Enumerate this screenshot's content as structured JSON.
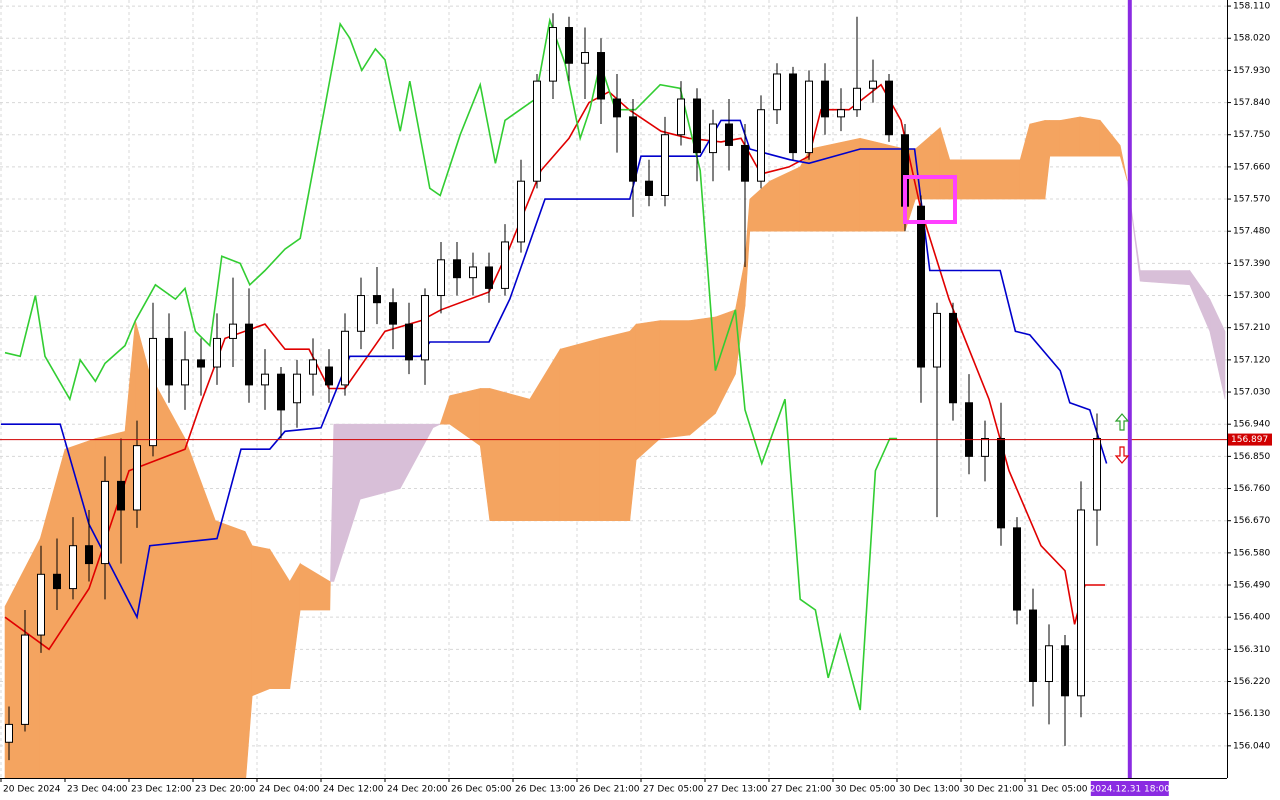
{
  "chart_data": {
    "type": "candlestick",
    "xlim": [
      0,
      153.25
    ],
    "ylim": [
      155.95,
      158.127
    ],
    "grid": true,
    "xticks": [
      {
        "value": 0,
        "label": "20 Dec 2024"
      },
      {
        "value": 8,
        "label": "23 Dec 04:00"
      },
      {
        "value": 16,
        "label": "23 Dec 12:00"
      },
      {
        "value": 24,
        "label": "23 Dec 20:00"
      },
      {
        "value": 32,
        "label": "24 Dec 04:00"
      },
      {
        "value": 40,
        "label": "24 Dec 12:00"
      },
      {
        "value": 48,
        "label": "24 Dec 20:00"
      },
      {
        "value": 56,
        "label": "26 Dec 05:00"
      },
      {
        "value": 64,
        "label": "26 Dec 13:00"
      },
      {
        "value": 72,
        "label": "26 Dec 21:00"
      },
      {
        "value": 80,
        "label": "27 Dec 05:00"
      },
      {
        "value": 88,
        "label": "27 Dec 13:00"
      },
      {
        "value": 96,
        "label": "27 Dec 21:00"
      },
      {
        "value": 104,
        "label": "30 Dec 05:00"
      },
      {
        "value": 112,
        "label": "30 Dec 13:00"
      },
      {
        "value": 120,
        "label": "30 Dec 21:00"
      },
      {
        "value": 128,
        "label": "31 Dec 05:00"
      }
    ],
    "yticks": [
      {
        "value": 158.11,
        "label": "158.110"
      },
      {
        "value": 158.02,
        "label": "158.020"
      },
      {
        "value": 157.93,
        "label": "157.930"
      },
      {
        "value": 157.84,
        "label": "157.840"
      },
      {
        "value": 157.75,
        "label": "157.750"
      },
      {
        "value": 157.66,
        "label": "157.660"
      },
      {
        "value": 157.57,
        "label": "157.570"
      },
      {
        "value": 157.48,
        "label": "157.480"
      },
      {
        "value": 157.39,
        "label": "157.390"
      },
      {
        "value": 157.3,
        "label": "157.300"
      },
      {
        "value": 157.21,
        "label": "157.210"
      },
      {
        "value": 157.12,
        "label": "157.120"
      },
      {
        "value": 157.03,
        "label": "157.030"
      },
      {
        "value": 156.94,
        "label": "156.940"
      },
      {
        "value": 156.85,
        "label": "156.850"
      },
      {
        "value": 156.76,
        "label": "156.760"
      },
      {
        "value": 156.67,
        "label": "156.670"
      },
      {
        "value": 156.58,
        "label": "156.580"
      },
      {
        "value": 156.49,
        "label": "156.490"
      },
      {
        "value": 156.4,
        "label": "156.400"
      },
      {
        "value": 156.31,
        "label": "156.310"
      },
      {
        "value": 156.22,
        "label": "156.220"
      },
      {
        "value": 156.13,
        "label": "156.130"
      },
      {
        "value": 156.04,
        "label": "156.040"
      }
    ],
    "cloud": {
      "up_color": "#f4a460",
      "down_color": "#d8bfd8",
      "x": [
        0.5,
        4.9,
        8,
        11.8,
        15.5,
        16.8,
        18.6,
        23,
        26.8,
        30.5,
        31.4,
        33.6,
        36.1,
        37.4,
        41.1,
        41.6,
        44.9,
        49.9,
        54,
        54.9,
        56.1,
        59.9,
        61.1,
        66.1,
        69.9,
        74.9,
        78.6,
        79.4,
        82.4,
        86.1,
        89.3,
        91.8,
        93,
        93.6,
        96.1,
        99.9,
        101.1,
        107.4,
        113,
        114.3,
        117.4,
        118.6,
        127.4,
        128.6,
        130.5,
        131.1,
        132.4,
        134.9,
        137.4,
        139.9,
        140.8,
        142.4,
        148.6,
        151.1,
        153
      ],
      "span_a": [
        156.43,
        156.62,
        156.87,
        156.9,
        156.92,
        157.23,
        157.08,
        156.9,
        156.67,
        156.64,
        156.6,
        156.59,
        156.5,
        156.55,
        156.5,
        156.5,
        156.73,
        156.76,
        156.93,
        156.94,
        157.02,
        157.04,
        157.04,
        157.01,
        157.15,
        157.18,
        157.2,
        157.22,
        157.23,
        157.23,
        157.24,
        157.26,
        157.4,
        157.57,
        157.62,
        157.66,
        157.71,
        157.74,
        157.71,
        157.71,
        157.77,
        157.68,
        157.68,
        157.78,
        157.79,
        157.79,
        157.79,
        157.8,
        157.79,
        157.72,
        157.62,
        157.34,
        157.33,
        157.2,
        157.01
      ],
      "span_b": [
        155.92,
        155.92,
        155.92,
        155.92,
        155.92,
        155.92,
        155.92,
        155.92,
        155.92,
        155.92,
        156.18,
        156.2,
        156.2,
        156.42,
        156.42,
        156.94,
        156.94,
        156.94,
        156.94,
        156.94,
        156.94,
        156.88,
        156.67,
        156.67,
        156.67,
        156.67,
        156.67,
        156.84,
        156.9,
        156.91,
        156.97,
        157.08,
        157.27,
        157.48,
        157.48,
        157.48,
        157.48,
        157.48,
        157.48,
        157.57,
        157.57,
        157.57,
        157.57,
        157.57,
        157.57,
        157.69,
        157.69,
        157.69,
        157.69,
        157.69,
        157.62,
        157.37,
        157.37,
        157.29,
        157.2
      ]
    },
    "lines": [
      {
        "color": "#e00000",
        "x": [
          0.5,
          6,
          11,
          16,
          23,
          25,
          28,
          33,
          35.5,
          38.5,
          41,
          43,
          48,
          52.5,
          55,
          61,
          63.5,
          67.5,
          71,
          73.5,
          76,
          78.5,
          82.5,
          86,
          90,
          92.5,
          95,
          98.5,
          101,
          102.5,
          106,
          110,
          112.5,
          115,
          118.5,
          121,
          123.5,
          126,
          130,
          133,
          134.2,
          135.5,
          138
        ],
        "values": [
          156.4,
          156.31,
          156.48,
          156.81,
          156.87,
          157.0,
          157.18,
          157.22,
          157.15,
          157.15,
          157.04,
          157.04,
          157.2,
          157.23,
          157.26,
          157.31,
          157.43,
          157.65,
          157.74,
          157.84,
          157.87,
          157.82,
          157.76,
          157.74,
          157.73,
          157.74,
          157.64,
          157.66,
          157.69,
          157.82,
          157.82,
          157.89,
          157.79,
          157.54,
          157.29,
          157.15,
          157.01,
          156.81,
          156.6,
          156.53,
          156.38,
          156.49,
          156.49
        ]
      },
      {
        "color": "#0000cc",
        "x": [
          0,
          7.4,
          11,
          17,
          18.6,
          27,
          30,
          33.6,
          35.5,
          40,
          43.6,
          52.4,
          53.6,
          61,
          63.6,
          68,
          78.6,
          80,
          87.4,
          90,
          92.4,
          93.6,
          98.6,
          101,
          107.4,
          114.2,
          116.1,
          124.9,
          126.8,
          128.6,
          132.4,
          133.6,
          136.1,
          138.2
        ],
        "values": [
          156.94,
          156.94,
          156.66,
          156.4,
          156.6,
          156.62,
          156.87,
          156.87,
          156.92,
          156.93,
          157.13,
          157.13,
          157.17,
          157.17,
          157.29,
          157.57,
          157.57,
          157.69,
          157.69,
          157.79,
          157.79,
          157.71,
          157.68,
          157.67,
          157.71,
          157.71,
          157.37,
          157.37,
          157.2,
          157.19,
          157.09,
          157.0,
          156.98,
          156.83
        ]
      },
      {
        "color": "#32cd32",
        "x": [
          0.5,
          2.4,
          4.3,
          5.5,
          8.6,
          9.9,
          11.8,
          13,
          15.5,
          16.8,
          19.3,
          21.8,
          23,
          24.3,
          26.1,
          27.6,
          29.9,
          31.1,
          33,
          35.5,
          37.4,
          40.5,
          42.4,
          43.6,
          45.1,
          46.8,
          48,
          49.9,
          51.1,
          53.6,
          54.9,
          57.4,
          59.9,
          61.8,
          63,
          64.9,
          66.8,
          68.6,
          70.5,
          72.4,
          73.6,
          74.9,
          76.8,
          79.3,
          82.4,
          84.9,
          87.4,
          89.3,
          91.8,
          93,
          95.1,
          98,
          99.9,
          101.8,
          103.4,
          104.9,
          107.4,
          109.3,
          111.1,
          112
        ],
        "values": [
          157.14,
          157.13,
          157.3,
          157.13,
          157.01,
          157.12,
          157.06,
          157.11,
          157.16,
          157.23,
          157.33,
          157.29,
          157.32,
          157.2,
          157.16,
          157.41,
          157.39,
          157.33,
          157.37,
          157.43,
          157.46,
          157.83,
          158.06,
          158.02,
          157.93,
          157.99,
          157.96,
          157.76,
          157.9,
          157.6,
          157.58,
          157.75,
          157.89,
          157.67,
          157.79,
          157.82,
          157.85,
          158.07,
          157.95,
          157.74,
          157.82,
          157.95,
          157.82,
          157.82,
          157.89,
          157.88,
          157.65,
          157.09,
          157.26,
          156.98,
          156.83,
          157.01,
          156.45,
          156.42,
          156.23,
          156.35,
          156.14,
          156.81,
          156.9,
          156.9
        ]
      }
    ],
    "candles": {
      "up_color": "#ffffff",
      "down_color": "#000000",
      "x": [
        1,
        3,
        5,
        7,
        9,
        11,
        13,
        15,
        17,
        19,
        21,
        23,
        25,
        27,
        29,
        31,
        33,
        35,
        37,
        39,
        41,
        43,
        45,
        47,
        49,
        51,
        53,
        55,
        57,
        59,
        61,
        63,
        65,
        67,
        69,
        71,
        73,
        75,
        77,
        79,
        81,
        83,
        85,
        87,
        89,
        91,
        93,
        95,
        97,
        99,
        101,
        103,
        105,
        107,
        109,
        111,
        113,
        115,
        117,
        119,
        121,
        123,
        125,
        127,
        129,
        131,
        133,
        135,
        137
      ],
      "open": [
        156.05,
        156.1,
        156.35,
        156.52,
        156.48,
        156.6,
        156.55,
        156.78,
        156.7,
        156.88,
        157.18,
        157.05,
        157.12,
        157.1,
        157.18,
        157.22,
        157.05,
        157.08,
        157.0,
        157.08,
        157.1,
        157.05,
        157.2,
        157.3,
        157.28,
        157.22,
        157.12,
        157.3,
        157.4,
        157.35,
        157.38,
        157.32,
        157.45,
        157.62,
        157.9,
        158.05,
        157.95,
        157.98,
        157.85,
        157.8,
        157.62,
        157.58,
        157.75,
        157.85,
        157.7,
        157.78,
        157.72,
        157.62,
        157.82,
        157.92,
        157.7,
        157.9,
        157.8,
        157.82,
        157.88,
        157.9,
        157.75,
        157.55,
        157.1,
        157.25,
        157.0,
        156.85,
        156.9,
        156.65,
        156.42,
        156.22,
        156.32,
        156.18,
        156.7
      ],
      "high": [
        156.15,
        156.42,
        156.6,
        156.62,
        156.68,
        156.7,
        156.85,
        156.9,
        156.95,
        157.28,
        157.25,
        157.2,
        157.18,
        157.25,
        157.35,
        157.32,
        157.15,
        157.1,
        157.12,
        157.18,
        157.15,
        157.25,
        157.35,
        157.38,
        157.32,
        157.28,
        157.32,
        157.45,
        157.45,
        157.42,
        157.42,
        157.5,
        157.68,
        157.92,
        158.09,
        158.08,
        158.05,
        158.02,
        157.92,
        157.85,
        157.68,
        157.8,
        157.9,
        157.88,
        157.82,
        157.85,
        157.78,
        157.86,
        157.95,
        157.94,
        157.93,
        157.95,
        157.88,
        158.08,
        157.96,
        157.92,
        157.78,
        157.58,
        157.28,
        157.28,
        157.08,
        156.95,
        157.0,
        156.68,
        156.48,
        156.38,
        156.35,
        156.78,
        156.97
      ],
      "low": [
        156.0,
        156.08,
        156.3,
        156.42,
        156.45,
        156.5,
        156.45,
        156.55,
        156.65,
        156.85,
        157.0,
        156.98,
        157.02,
        157.05,
        157.1,
        157.0,
        156.98,
        156.9,
        156.93,
        157.02,
        157.0,
        157.02,
        157.15,
        157.22,
        157.15,
        157.08,
        157.05,
        157.25,
        157.3,
        157.3,
        157.28,
        157.3,
        157.42,
        157.6,
        157.85,
        157.9,
        157.85,
        157.78,
        157.7,
        157.52,
        157.55,
        157.55,
        157.72,
        157.62,
        157.62,
        157.65,
        157.38,
        157.6,
        157.78,
        157.68,
        157.68,
        157.75,
        157.76,
        157.8,
        157.84,
        157.73,
        157.48,
        157.0,
        156.68,
        156.95,
        156.8,
        156.78,
        156.6,
        156.38,
        156.15,
        156.1,
        156.04,
        156.12,
        156.6
      ],
      "close": [
        156.1,
        156.35,
        156.52,
        156.48,
        156.6,
        156.55,
        156.78,
        156.7,
        156.88,
        157.18,
        157.05,
        157.12,
        157.1,
        157.18,
        157.22,
        157.05,
        157.08,
        156.98,
        157.08,
        157.12,
        157.05,
        157.2,
        157.3,
        157.28,
        157.22,
        157.12,
        157.3,
        157.4,
        157.35,
        157.38,
        157.32,
        157.45,
        157.62,
        157.9,
        158.05,
        157.95,
        157.98,
        157.85,
        157.8,
        157.62,
        157.58,
        157.75,
        157.85,
        157.7,
        157.78,
        157.72,
        157.62,
        157.82,
        157.92,
        157.7,
        157.9,
        157.8,
        157.82,
        157.88,
        157.9,
        157.75,
        157.55,
        157.1,
        157.25,
        157.0,
        156.85,
        156.9,
        156.65,
        156.42,
        156.22,
        156.32,
        156.18,
        156.7,
        156.9
      ]
    },
    "current_price": {
      "value": 156.897,
      "color": "#d00000"
    },
    "time_marker": {
      "x": 141.1,
      "label": "2024.12.31 18:00",
      "color": "#8a2be2"
    }
  }
}
